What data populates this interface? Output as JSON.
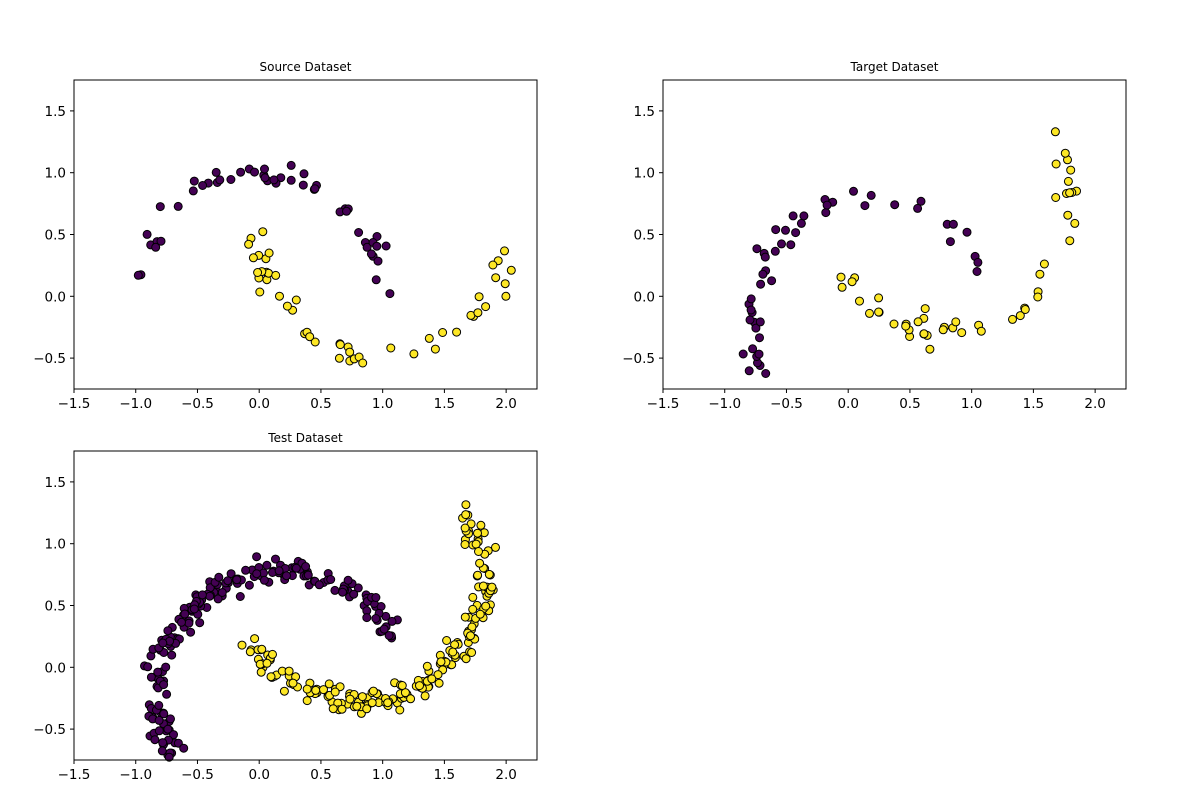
{
  "chart_data": [
    {
      "type": "scatter",
      "title": "Source Dataset",
      "xlim": [
        -1.5,
        2.25
      ],
      "ylim": [
        -0.75,
        1.75
      ],
      "xticks": [
        "−1.5",
        "−1.0",
        "−0.5",
        "0.0",
        "0.5",
        "1.0",
        "1.5",
        "2.0"
      ],
      "yticks": [
        "−0.5",
        "0.0",
        "0.5",
        "1.0",
        "1.5"
      ],
      "colors": {
        "class0": "#440154",
        "class1": "#fde725"
      },
      "generator": {
        "n": 100,
        "rotation_deg": 0,
        "shift": [
          0,
          0
        ],
        "noise": 0.05,
        "seed": 11
      }
    },
    {
      "type": "scatter",
      "title": "Target Dataset",
      "xlim": [
        -1.5,
        2.25
      ],
      "ylim": [
        -0.75,
        1.75
      ],
      "xticks": [
        "−1.5",
        "−1.0",
        "−0.5",
        "0.0",
        "0.5",
        "1.0",
        "1.5",
        "2.0"
      ],
      "yticks": [
        "−0.5",
        "0.0",
        "0.5",
        "1.0",
        "1.5"
      ],
      "colors": {
        "class0": "#440154",
        "class1": "#fde725"
      },
      "generator": {
        "n": 100,
        "rotation_deg": 30,
        "shift": [
          0,
          0
        ],
        "noise": 0.05,
        "seed": 23
      }
    },
    {
      "type": "scatter",
      "title": "Test Dataset",
      "xlim": [
        -1.5,
        2.25
      ],
      "ylim": [
        -0.75,
        1.75
      ],
      "xticks": [
        "−1.5",
        "−1.0",
        "−0.5",
        "0.0",
        "0.5",
        "1.0",
        "1.5",
        "2.0"
      ],
      "yticks": [
        "−0.5",
        "0.0",
        "0.5",
        "1.0",
        "1.5"
      ],
      "colors": {
        "class0": "#440154",
        "class1": "#fde725"
      },
      "generator": {
        "n": 400,
        "rotation_deg": 30,
        "shift": [
          0,
          0
        ],
        "noise": 0.05,
        "seed": 37
      }
    }
  ]
}
